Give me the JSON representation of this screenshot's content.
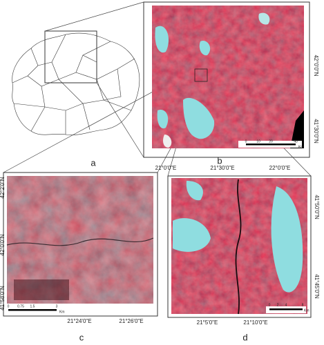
{
  "panels": [
    {
      "label": "a"
    },
    {
      "label": "b",
      "lat_labels": [
        "42°0'0\"N",
        "41°30'0\"N"
      ],
      "lon_labels": [
        "21°0'0\"E",
        "21°30'0\"E",
        "22°0'0\"E"
      ],
      "scale": {
        "ticks": [
          "0",
          "10",
          "20",
          "40"
        ],
        "unit": "Km"
      }
    },
    {
      "label": "c",
      "lat_labels": [
        "42°2'0\"N",
        "42°0'0\"N",
        "41°58'0\"N"
      ],
      "lon_labels": [
        "21°24'0\"E",
        "21°26'0\"E"
      ],
      "scale": {
        "ticks": [
          "0",
          "0.75",
          "1.5",
          "3"
        ],
        "unit": "Km"
      }
    },
    {
      "label": "d",
      "lat_labels": [
        "41°50'0\"N",
        "41°45'0\"N"
      ],
      "lon_labels": [
        "21°5'0\"E",
        "21°10'0\"E"
      ],
      "scale": {
        "ticks": [
          "0",
          "2",
          "4",
          "8"
        ],
        "unit": "Km"
      }
    }
  ]
}
